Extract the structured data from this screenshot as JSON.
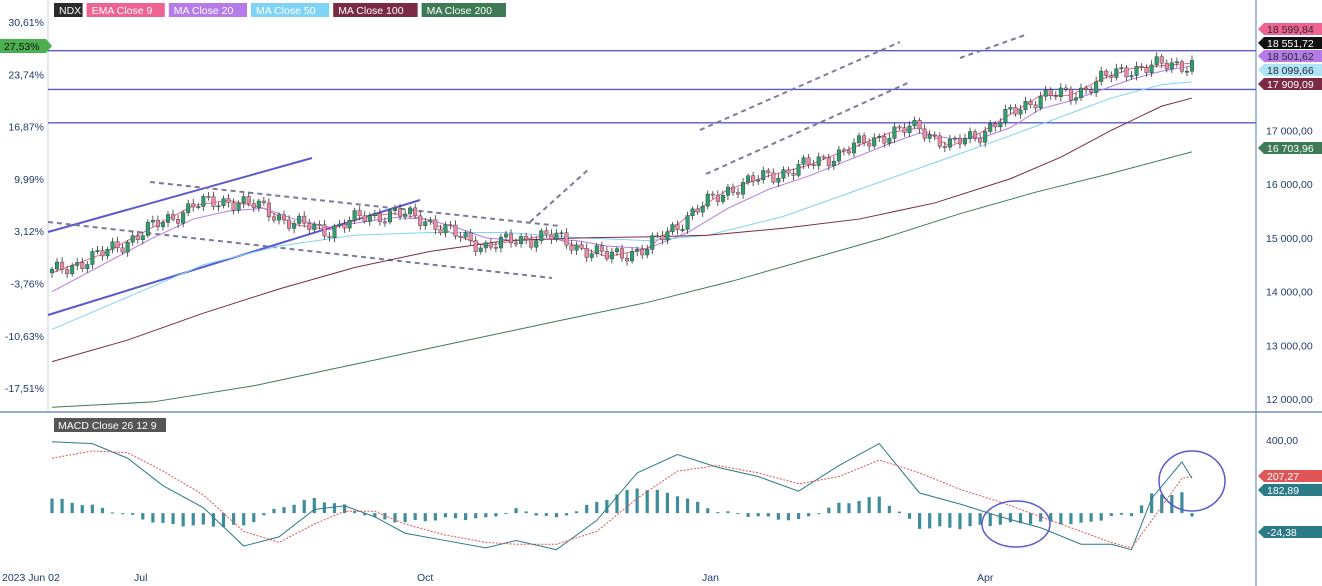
{
  "chart_data": [
    {
      "type": "candlestick",
      "legend": [
        {
          "label": "NDX",
          "color": "#2b2b2b"
        },
        {
          "label": "EMA Close 9",
          "color": "#f06292"
        },
        {
          "label": "MA Close 20",
          "color": "#b57be8"
        },
        {
          "label": "MA Close 50",
          "color": "#7fd3f5"
        },
        {
          "label": "MA Close 100",
          "color": "#7a2a45"
        },
        {
          "label": "MA Close 200",
          "color": "#3d7a55"
        }
      ],
      "x_ticks": [
        "2023 Jun 02",
        "Jul",
        "Oct",
        "Jan",
        "Apr"
      ],
      "y_right_ticks": [
        "17 000,00",
        "16 000,00",
        "15 000,00",
        "14 000,00",
        "13 000,00",
        "12 000,00"
      ],
      "y_left_ticks": [
        "30,61%",
        "23,74%",
        "16,87%",
        "9,99%",
        "3,12%",
        "-3,76%",
        "-10,63%",
        "-17,51%"
      ],
      "left_current_badge": {
        "label": "27,53%",
        "color": "#4caf50"
      },
      "price_badges": [
        {
          "label": "18 599,84",
          "color": "#f06292",
          "text_color": "#2b2b2b"
        },
        {
          "label": "18 551,72",
          "color": "#111111",
          "text_color": "#ffffff"
        },
        {
          "label": "18 501,62",
          "color": "#b57be8",
          "text_color": "#2b2b2b"
        },
        {
          "label": "18 099,66",
          "color": "#aee4f8",
          "text_color": "#2b2b2b"
        },
        {
          "label": "17 909,09",
          "color": "#7a2a45",
          "text_color": "#ffffff"
        },
        {
          "label": "16 703,96",
          "color": "#3d7a55",
          "text_color": "#ffffff"
        }
      ],
      "horizontal_levels": [
        18480,
        17760,
        17140
      ],
      "y_range": [
        11800,
        19200
      ],
      "ma_series": [
        {
          "name": "EMA Close 9",
          "color": "#f06292",
          "x": [
            0,
            10,
            20,
            28,
            35,
            42,
            48,
            55,
            62,
            68,
            74,
            80,
            86,
            92,
            98,
            104,
            110,
            118,
            126,
            134,
            142,
            150,
            158,
            166,
            172,
            178,
            184,
            190,
            196,
            202,
            208,
            214,
            220,
            226
          ],
          "y": [
            14350,
            14700,
            15200,
            15600,
            15700,
            15550,
            15250,
            15150,
            15400,
            15450,
            15350,
            15050,
            14850,
            14950,
            15050,
            14850,
            14650,
            14800,
            15400,
            15900,
            16150,
            16350,
            16650,
            16950,
            17050,
            16700,
            16950,
            17300,
            17650,
            17650,
            17950,
            18150,
            18200,
            18250
          ]
        },
        {
          "name": "MA Close 20",
          "color": "#b57be8",
          "x": [
            0,
            10,
            20,
            28,
            35,
            42,
            48,
            55,
            62,
            68,
            74,
            80,
            86,
            92,
            98,
            104,
            110,
            118,
            126,
            134,
            142,
            150,
            158,
            166,
            172,
            178,
            184,
            190,
            196,
            202,
            208,
            214,
            220,
            226
          ],
          "y": [
            14000,
            14500,
            15000,
            15350,
            15500,
            15550,
            15350,
            15200,
            15300,
            15380,
            15350,
            15200,
            15000,
            14950,
            14980,
            14950,
            14850,
            14800,
            15100,
            15550,
            15900,
            16150,
            16450,
            16750,
            16950,
            16850,
            16850,
            17050,
            17400,
            17550,
            17750,
            17950,
            18100,
            18200
          ]
        },
        {
          "name": "MA Close 50",
          "color": "#7fd3f5",
          "x": [
            0,
            15,
            30,
            45,
            60,
            75,
            90,
            105,
            118,
            130,
            145,
            160,
            175,
            190,
            200,
            210,
            220,
            226
          ],
          "y": [
            13300,
            13900,
            14500,
            14850,
            15050,
            15100,
            15100,
            15000,
            14950,
            15050,
            15400,
            15900,
            16400,
            16900,
            17250,
            17600,
            17850,
            17900
          ]
        },
        {
          "name": "MA Close 100",
          "color": "#7a2a45",
          "x": [
            0,
            15,
            30,
            45,
            60,
            75,
            90,
            105,
            118,
            130,
            145,
            160,
            175,
            190,
            200,
            210,
            220,
            226
          ],
          "y": [
            12700,
            13100,
            13600,
            14050,
            14450,
            14750,
            14950,
            15000,
            15020,
            15050,
            15180,
            15350,
            15650,
            16100,
            16500,
            17000,
            17450,
            17600
          ]
        },
        {
          "name": "MA Close 200",
          "color": "#3d7a55",
          "x": [
            0,
            20,
            40,
            60,
            80,
            100,
            118,
            135,
            150,
            165,
            180,
            195,
            210,
            226
          ],
          "y": [
            11850,
            11950,
            12250,
            12650,
            13050,
            13450,
            13800,
            14200,
            14600,
            15000,
            15450,
            15850,
            16200,
            16600
          ]
        }
      ]
    },
    {
      "type": "macd",
      "label": "MACD Close 26 12 9",
      "y_ticks": [
        "400,00"
      ],
      "y_range": [
        -300,
        520
      ],
      "badges": [
        {
          "label": "207,27",
          "color": "#e05555"
        },
        {
          "label": "182,89",
          "color": "#2b7a87"
        },
        {
          "label": "-24,38",
          "color": "#2b7a87"
        }
      ],
      "macd_line": {
        "x": [
          0,
          8,
          15,
          22,
          30,
          38,
          45,
          52,
          58,
          64,
          70,
          78,
          86,
          92,
          100,
          108,
          116,
          124,
          132,
          140,
          148,
          156,
          164,
          172,
          180,
          188,
          196,
          204,
          210,
          214,
          218,
          224,
          226
        ],
        "y": [
          390,
          380,
          300,
          150,
          30,
          -180,
          -130,
          20,
          40,
          -20,
          -110,
          -150,
          -190,
          -150,
          -200,
          -40,
          220,
          320,
          250,
          200,
          120,
          260,
          380,
          110,
          50,
          -20,
          -80,
          -170,
          -170,
          -200,
          80,
          280,
          190
        ]
      },
      "signal_line": {
        "x": [
          0,
          8,
          15,
          22,
          30,
          38,
          45,
          52,
          58,
          64,
          70,
          78,
          86,
          92,
          100,
          108,
          116,
          124,
          132,
          140,
          148,
          156,
          164,
          172,
          180,
          188,
          196,
          204,
          210,
          214,
          218,
          224,
          226
        ],
        "y": [
          300,
          340,
          330,
          230,
          100,
          -100,
          -160,
          -60,
          10,
          10,
          -60,
          -120,
          -160,
          -170,
          -170,
          -100,
          80,
          230,
          260,
          220,
          160,
          200,
          290,
          220,
          130,
          60,
          -20,
          -100,
          -160,
          -190,
          -40,
          190,
          200
        ]
      },
      "histogram": {
        "x": [
          0,
          8,
          15,
          22,
          30,
          38,
          45,
          52,
          58,
          64,
          70,
          78,
          86,
          92,
          100,
          108,
          116,
          124,
          132,
          140,
          148,
          156,
          164,
          172,
          180,
          188,
          196,
          204,
          210,
          214,
          218,
          224,
          226
        ],
        "y": [
          80,
          40,
          -10,
          -60,
          -70,
          -70,
          30,
          80,
          40,
          -30,
          -50,
          -30,
          -30,
          20,
          -30,
          60,
          140,
          100,
          10,
          -20,
          -40,
          50,
          90,
          -80,
          -80,
          -60,
          -50,
          -60,
          -20,
          -10,
          100,
          110,
          -24
        ]
      }
    }
  ]
}
